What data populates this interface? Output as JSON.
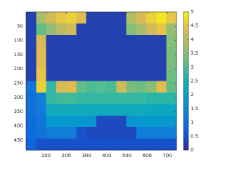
{
  "chart_data": {
    "type": "heatmap",
    "colormap": "parula",
    "xlim": [
      1,
      745
    ],
    "ylim": [
      0,
      485
    ],
    "y_reversed": true,
    "xticks": [
      100,
      200,
      300,
      400,
      500,
      600,
      700
    ],
    "yticks": [
      50,
      100,
      150,
      200,
      250,
      300,
      350,
      400,
      450
    ],
    "clim": [
      0,
      5
    ],
    "cticks": [
      0,
      0.5,
      1,
      1.5,
      2,
      2.5,
      3,
      3.5,
      4,
      4.5,
      5
    ],
    "z": [
      [
        0.3,
        3.8,
        4.2,
        4.5,
        4.6,
        4.4,
        0.3,
        0.3,
        0.3,
        0.3,
        3.9,
        4.3,
        4.6,
        4.8,
        4.5
      ],
      [
        0.3,
        3.2,
        3.6,
        4.0,
        4.2,
        0.3,
        0.3,
        0.3,
        0.3,
        0.3,
        3.5,
        3.8,
        4.2,
        4.5,
        3.6
      ],
      [
        0.3,
        4.3,
        0.3,
        0.3,
        0.3,
        0.3,
        0.3,
        0.3,
        0.3,
        0.3,
        0.3,
        0.3,
        0.3,
        0.3,
        3.5
      ],
      [
        0.3,
        4.4,
        0.3,
        0.3,
        0.3,
        0.3,
        0.3,
        0.3,
        0.3,
        0.3,
        0.3,
        0.3,
        0.3,
        0.3,
        3.4
      ],
      [
        0.3,
        4.4,
        0.3,
        0.3,
        0.3,
        0.3,
        0.3,
        0.3,
        0.3,
        0.3,
        0.3,
        0.3,
        0.3,
        0.3,
        3.4
      ],
      [
        0.3,
        4.5,
        0.3,
        0.3,
        0.3,
        0.3,
        0.3,
        0.3,
        0.3,
        0.3,
        0.3,
        0.3,
        0.3,
        0.3,
        3.3
      ],
      [
        1.1,
        4.6,
        2.8,
        4.3,
        4.4,
        3.2,
        3.0,
        3.1,
        3.0,
        4.2,
        3.4,
        3.3,
        3.5,
        4.4,
        3.2
      ],
      [
        1.0,
        1.3,
        2.8,
        2.9,
        2.9,
        2.8,
        2.8,
        2.8,
        2.8,
        2.8,
        2.8,
        2.8,
        2.7,
        2.7,
        2.7
      ],
      [
        1.0,
        1.2,
        2.3,
        2.3,
        2.3,
        2.3,
        2.3,
        2.3,
        2.3,
        2.3,
        2.3,
        2.3,
        2.2,
        2.2,
        2.2
      ],
      [
        0.9,
        1.1,
        1.8,
        1.8,
        1.8,
        1.8,
        1.7,
        0.4,
        0.4,
        0.4,
        1.7,
        1.8,
        1.8,
        1.8,
        1.8
      ],
      [
        0.9,
        1.0,
        1.3,
        1.3,
        1.3,
        0.5,
        0.4,
        0.4,
        0.4,
        0.4,
        0.4,
        1.3,
        1.3,
        1.3,
        1.3
      ],
      [
        0.8,
        0.5,
        0.5,
        0.5,
        0.5,
        0.5,
        0.5,
        0.5,
        0.5,
        0.5,
        0.5,
        0.5,
        0.5,
        0.5,
        0.5
      ]
    ]
  }
}
